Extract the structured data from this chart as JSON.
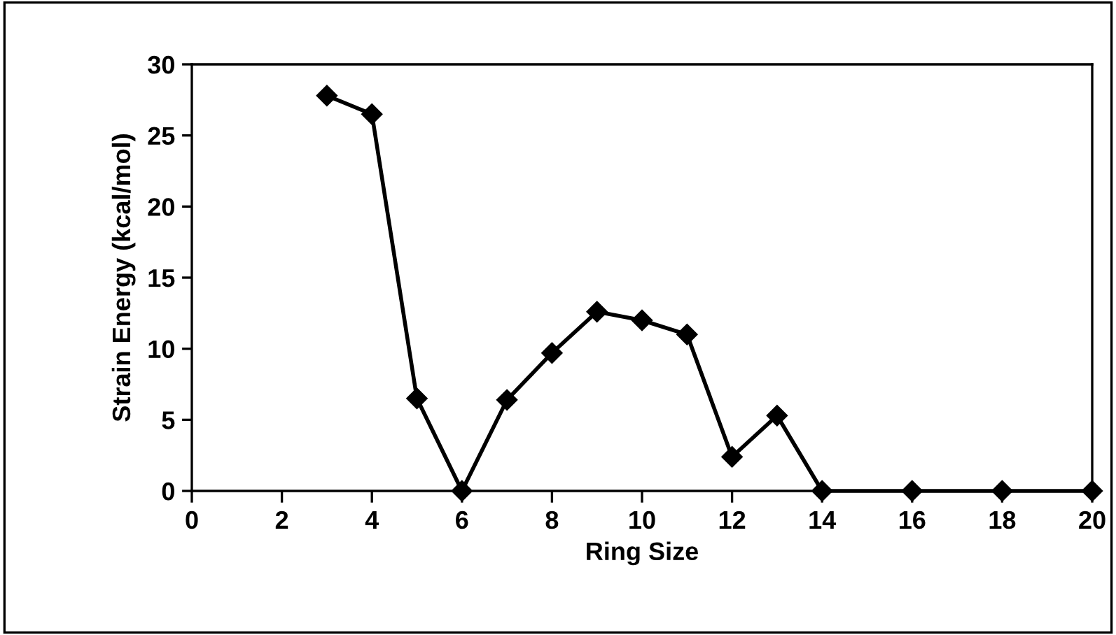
{
  "chart_data": {
    "type": "line",
    "xlabel": "Ring Size",
    "ylabel": "Strain Energy (kcal/mol)",
    "x": [
      3,
      4,
      5,
      6,
      7,
      8,
      9,
      10,
      11,
      12,
      13,
      14,
      16,
      18,
      20
    ],
    "series": [
      {
        "color": "#000000",
        "values": [
          27.8,
          26.5,
          6.5,
          0,
          6.4,
          9.7,
          12.6,
          12.0,
          11.0,
          2.4,
          5.3,
          0,
          0,
          0,
          0
        ]
      }
    ],
    "xlim": [
      0,
      20
    ],
    "xticks": [
      0,
      2,
      4,
      6,
      8,
      10,
      12,
      14,
      16,
      18,
      20
    ],
    "ylim": [
      0,
      30
    ],
    "yticks": [
      0,
      5,
      10,
      15,
      20,
      25,
      30
    ],
    "marker": "diamond",
    "line_style": "solid",
    "grid": false,
    "legend": false
  }
}
